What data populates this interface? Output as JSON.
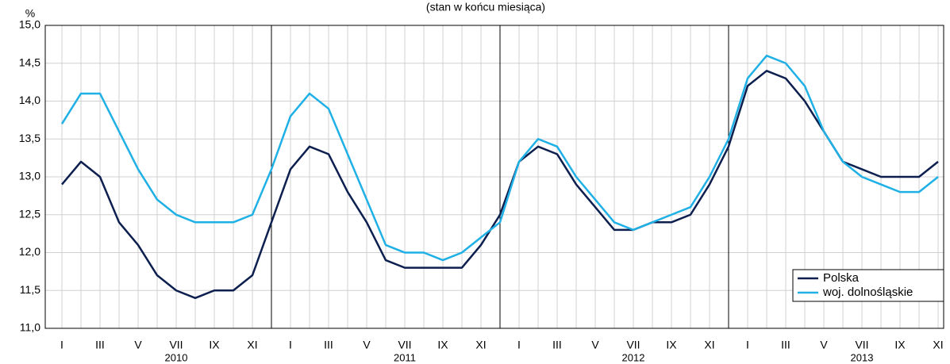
{
  "chart_data": {
    "type": "line",
    "title": "(stan w końcu miesiąca)",
    "ylabel": "%",
    "categories": [
      "I",
      null,
      "III",
      null,
      "V",
      null,
      "VII",
      null,
      "IX",
      null,
      "XI",
      null,
      "I",
      null,
      "III",
      null,
      "V",
      null,
      "VII",
      null,
      "IX",
      null,
      "XI",
      null,
      "I",
      null,
      "III",
      null,
      "V",
      null,
      "VII",
      null,
      "IX",
      null,
      "XI",
      null,
      "I",
      null,
      "III",
      null,
      "V",
      null,
      "VII",
      null,
      "IX",
      null,
      "XI"
    ],
    "years": [
      "2010",
      "2011",
      "2012",
      "2013"
    ],
    "series": [
      {
        "name": "Polska",
        "color": "#0d1f4f",
        "values": [
          12.9,
          13.2,
          13.0,
          12.4,
          12.1,
          11.7,
          11.5,
          11.4,
          11.5,
          11.5,
          11.7,
          12.4,
          13.1,
          13.4,
          13.3,
          12.8,
          12.4,
          11.9,
          11.8,
          11.8,
          11.8,
          11.8,
          12.1,
          12.5,
          13.2,
          13.4,
          13.3,
          12.9,
          12.6,
          12.3,
          12.3,
          12.4,
          12.4,
          12.5,
          12.9,
          13.4,
          14.2,
          14.4,
          14.3,
          14.0,
          13.6,
          13.2,
          13.1,
          13.0,
          13.0,
          13.0,
          13.2
        ]
      },
      {
        "name": "woj. dolnośląskie",
        "color": "#1fb0e6",
        "values": [
          13.7,
          14.1,
          14.1,
          13.6,
          13.1,
          12.7,
          12.5,
          12.4,
          12.4,
          12.4,
          12.5,
          13.1,
          13.8,
          14.1,
          13.9,
          13.3,
          12.7,
          12.1,
          12.0,
          12.0,
          11.9,
          12.0,
          12.2,
          12.4,
          13.2,
          13.5,
          13.4,
          13.0,
          12.7,
          12.4,
          12.3,
          12.4,
          12.5,
          12.6,
          13.0,
          13.5,
          14.3,
          14.6,
          14.5,
          14.2,
          13.6,
          13.2,
          13.0,
          12.9,
          12.8,
          12.8,
          13.0
        ]
      }
    ],
    "ylim": [
      11,
      15
    ],
    "yticks": [
      {
        "value": 11,
        "label": "11,0"
      },
      {
        "value": 11.5,
        "label": "11,5"
      },
      {
        "value": 12,
        "label": "12,0"
      },
      {
        "value": 12.5,
        "label": "12,5"
      },
      {
        "value": 13,
        "label": "13,0"
      },
      {
        "value": 13.5,
        "label": "13,5"
      },
      {
        "value": 14,
        "label": "14,0"
      },
      {
        "value": 14.5,
        "label": "14,5"
      },
      {
        "value": 15,
        "label": "15,0"
      }
    ],
    "grid": true,
    "legend": "lower right"
  }
}
